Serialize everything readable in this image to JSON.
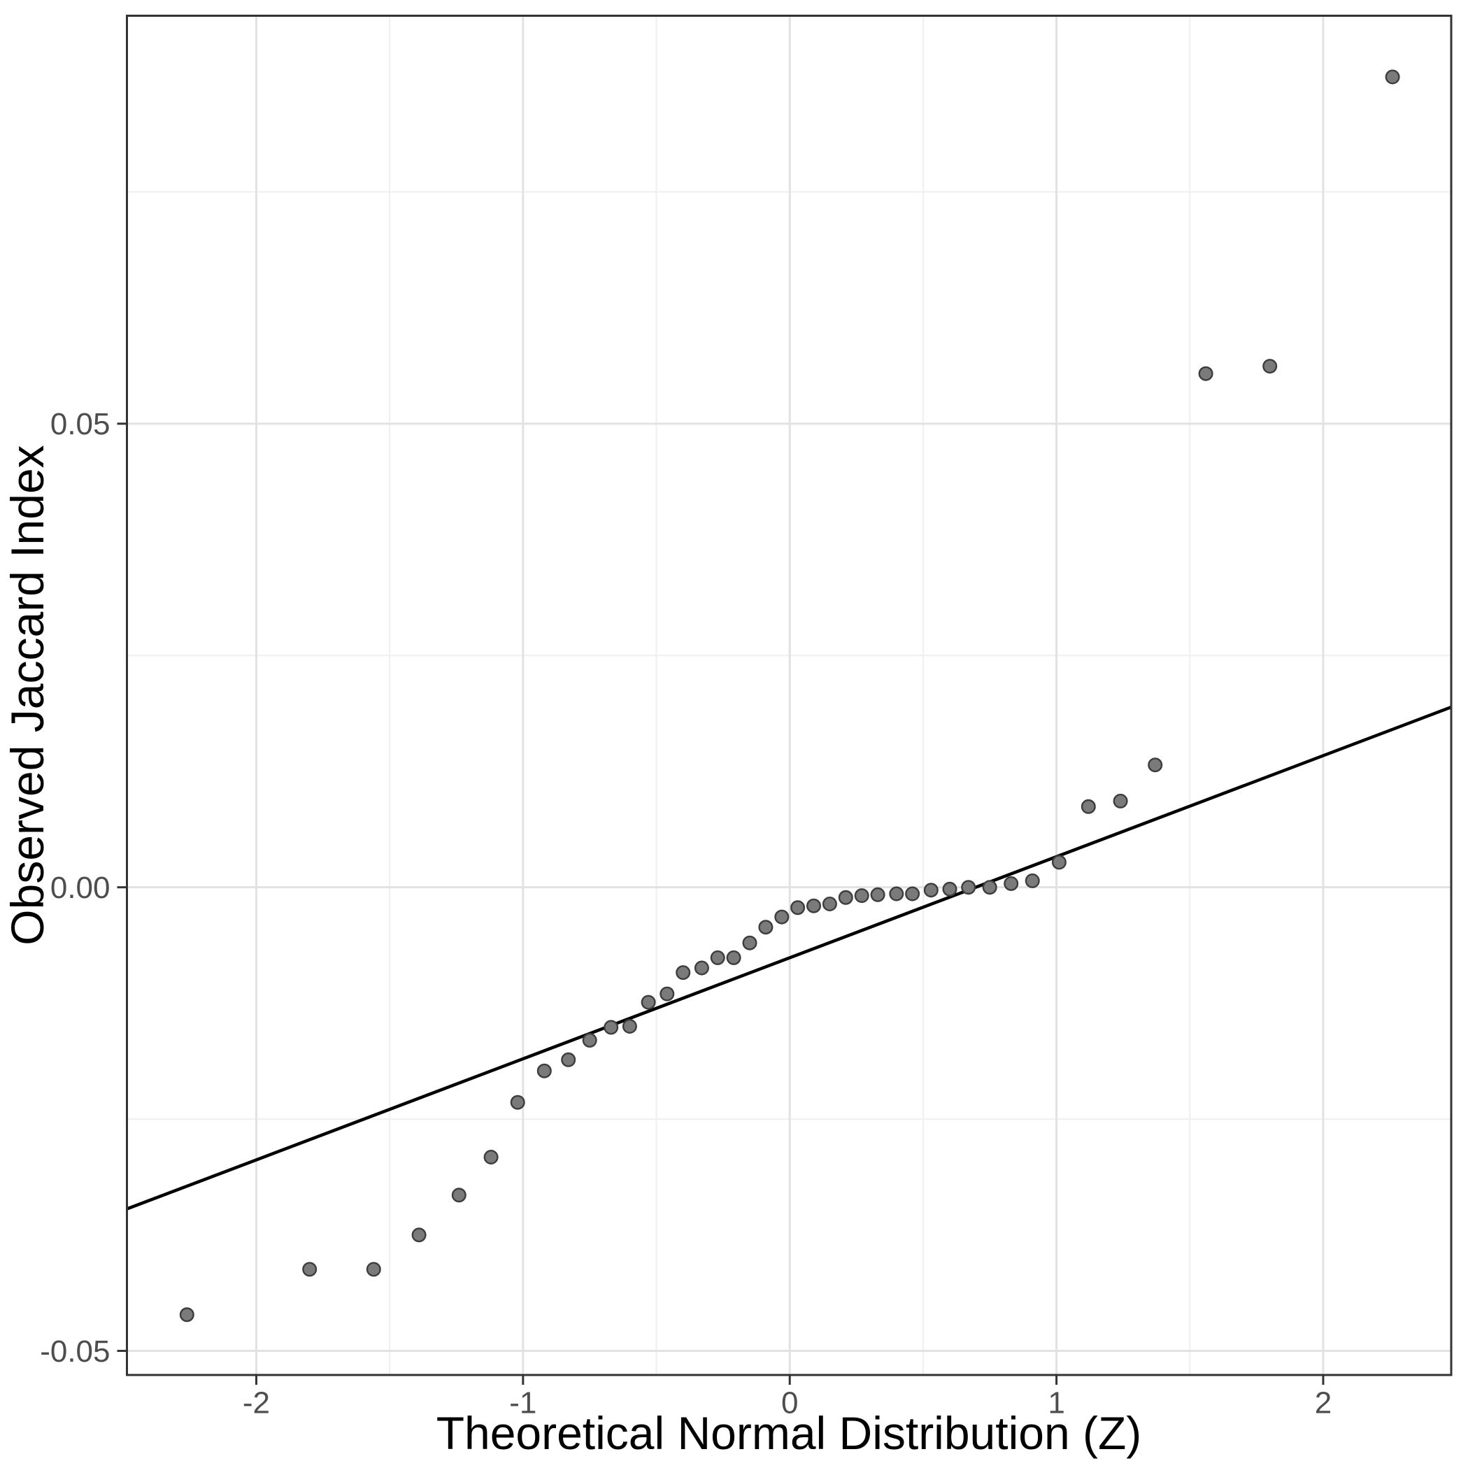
{
  "chart_data": {
    "type": "scatter",
    "subtype": "qq-plot",
    "title": "",
    "xlabel": "Theoretical Normal Distribution (Z)",
    "ylabel": "Observed Jaccard Index",
    "xlim": [
      -2.485,
      2.48
    ],
    "ylim": [
      -0.0526,
      0.094
    ],
    "x_major_ticks": [
      -2,
      -1,
      0,
      1,
      2
    ],
    "x_tick_labels": [
      "-2",
      "-1",
      "0",
      "1",
      "2"
    ],
    "y_major_ticks": [
      -0.05,
      0,
      0.05
    ],
    "y_tick_labels": [
      "-0.05",
      "0.00",
      "0.05"
    ],
    "x_minor_ticks": [
      -1.5,
      -0.5,
      0.5,
      1.5
    ],
    "y_minor_ticks": [
      -0.025,
      0.025,
      0.075
    ],
    "grid": {
      "major": true,
      "minor": true
    },
    "legend_position": "none",
    "reference_line": {
      "slope": 0.0109,
      "intercept": -0.0076
    },
    "points": [
      [
        -2.26,
        -0.0461
      ],
      [
        -1.8,
        -0.0412
      ],
      [
        -1.56,
        -0.0412
      ],
      [
        -1.39,
        -0.0375
      ],
      [
        -1.24,
        -0.0332
      ],
      [
        -1.12,
        -0.0291
      ],
      [
        -1.02,
        -0.0232
      ],
      [
        -0.92,
        -0.0198
      ],
      [
        -0.83,
        -0.0186
      ],
      [
        -0.75,
        -0.0165
      ],
      [
        -0.67,
        -0.0151
      ],
      [
        -0.6,
        -0.015
      ],
      [
        -0.53,
        -0.0124
      ],
      [
        -0.46,
        -0.0115
      ],
      [
        -0.4,
        -0.0092
      ],
      [
        -0.33,
        -0.0087
      ],
      [
        -0.27,
        -0.0076
      ],
      [
        -0.21,
        -0.0076
      ],
      [
        -0.15,
        -0.006
      ],
      [
        -0.09,
        -0.0043
      ],
      [
        -0.03,
        -0.0032
      ],
      [
        0.03,
        -0.0022
      ],
      [
        0.09,
        -0.002
      ],
      [
        0.15,
        -0.0018
      ],
      [
        0.21,
        -0.0011
      ],
      [
        0.27,
        -0.0009
      ],
      [
        0.33,
        -0.0008
      ],
      [
        0.4,
        -0.0007
      ],
      [
        0.46,
        -0.0007
      ],
      [
        0.53,
        -0.0003
      ],
      [
        0.6,
        -0.0002
      ],
      [
        0.67,
        0.0
      ],
      [
        0.75,
        0.0
      ],
      [
        0.83,
        0.0004
      ],
      [
        0.91,
        0.0007
      ],
      [
        1.01,
        0.0027
      ],
      [
        1.12,
        0.0087
      ],
      [
        1.24,
        0.0093
      ],
      [
        1.37,
        0.0132
      ],
      [
        1.56,
        0.0554
      ],
      [
        1.8,
        0.0562
      ],
      [
        2.26,
        0.0874
      ]
    ],
    "colors": {
      "background": "#ffffff",
      "panel_background": "#ffffff",
      "panel_border": "#333333",
      "grid_major": "#e2e2e2",
      "grid_minor": "#efefef",
      "tick_mark": "#333333",
      "tick_label": "#4d4d4d",
      "axis_title": "#000000",
      "reference_line": "#000000",
      "point_fill": "#7a7a7a",
      "point_stroke": "#3d3d3d"
    },
    "point_style": {
      "radius": 9.3,
      "stroke_width": 2.4
    },
    "line_style": {
      "width": 4.5
    }
  }
}
